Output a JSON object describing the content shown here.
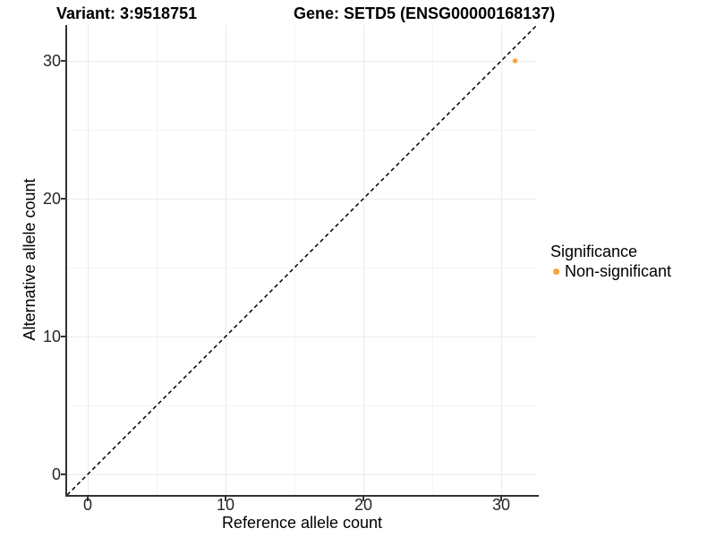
{
  "header": {
    "variant_title": "Variant: 3:9518751",
    "gene_title": "Gene: SETD5 (ENSG00000168137)"
  },
  "chart_data": {
    "type": "scatter",
    "xlabel": "Reference allele count",
    "ylabel": "Alternative allele count",
    "xticks": [
      0,
      10,
      20,
      30
    ],
    "yticks": [
      0,
      10,
      20,
      30
    ],
    "x_minor_ticks": [
      5,
      15,
      25
    ],
    "y_minor_ticks": [
      5,
      15,
      25
    ],
    "xlim": [
      -1.5,
      32.6
    ],
    "ylim": [
      -1.5,
      32.6
    ],
    "grid": "major+minor",
    "points": [
      {
        "x": 31,
        "y": 30,
        "series": "Non-significant"
      }
    ],
    "identity_line": {
      "equation": "y = x",
      "style": "dashed",
      "color": "#000000"
    },
    "series": [
      {
        "name": "Non-significant",
        "color": "#F9A23C"
      }
    ],
    "legend": {
      "title": "Significance",
      "position": "right",
      "items": [
        {
          "label": "Non-significant",
          "color": "#F9A23C"
        }
      ]
    }
  },
  "colors": {
    "background": "#ffffff",
    "axis_line": "#333333",
    "grid_major": "#ebebeb",
    "grid_minor": "#f5f5f5",
    "tick_label": "#262626"
  }
}
